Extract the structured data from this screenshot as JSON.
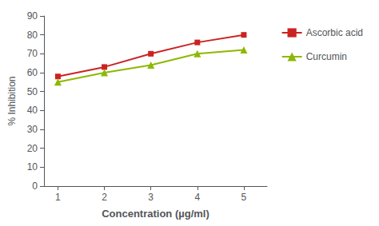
{
  "chart_data": {
    "type": "line",
    "xlabel": "Concentration (µg/ml)",
    "ylabel": "% Inhibition",
    "x": [
      1,
      2,
      3,
      4,
      5
    ],
    "series": [
      {
        "name": "Ascorbic acid",
        "color": "#cc2222",
        "marker": "square",
        "values": [
          58,
          63,
          70,
          76,
          80
        ]
      },
      {
        "name": "Curcumin",
        "color": "#8db800",
        "marker": "triangle",
        "values": [
          55,
          60,
          64,
          70,
          72
        ]
      }
    ],
    "xlim": [
      0.7,
      5.5
    ],
    "xticks": [
      1,
      2,
      3,
      4,
      5
    ],
    "ylim": [
      0,
      90
    ],
    "yticks": [
      0,
      10,
      20,
      30,
      40,
      50,
      60,
      70,
      80,
      90
    ],
    "grid": false,
    "legend": "right"
  }
}
